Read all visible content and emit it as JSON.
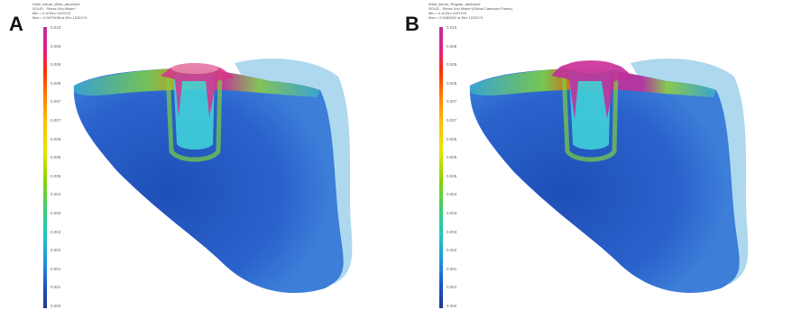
{
  "panels": [
    {
      "letter": "A",
      "header": {
        "title": "Wide_fixture_Wide_abutment",
        "line1": "SOLID : Stress Von Mises*",
        "line2": "Min = 0  at  Elm 1167575",
        "line3": "Max = 0.0079438  at  Elm 1226174"
      }
    },
    {
      "letter": "B",
      "header": {
        "title": "Wide_fixture_Regular_abutment",
        "line1": "SOLID : Stress Von Mises*(Global Cartesian Frame)",
        "line2": "Min = 0  at  Elm 1167575",
        "line3": "Max = 0.0080802  at  Elm 1226174"
      }
    }
  ],
  "legend": {
    "ticks": [
      "0.010",
      "0.009",
      "0.009",
      "0.008",
      "0.007",
      "0.007",
      "0.006",
      "0.005",
      "0.005",
      "0.004",
      "0.003",
      "0.003",
      "0.002",
      "0.001",
      "0.001",
      "0.000"
    ],
    "colors": {
      "max": "#c0309a",
      "high": "#ff3000",
      "mid": "#e6e600",
      "low_mid": "#20c8c0",
      "min": "#203a8a"
    }
  },
  "model": {
    "bone_color": "#2a5fc8",
    "implant_color": "#40d0d8",
    "hotspot_color": "#d8308c"
  }
}
